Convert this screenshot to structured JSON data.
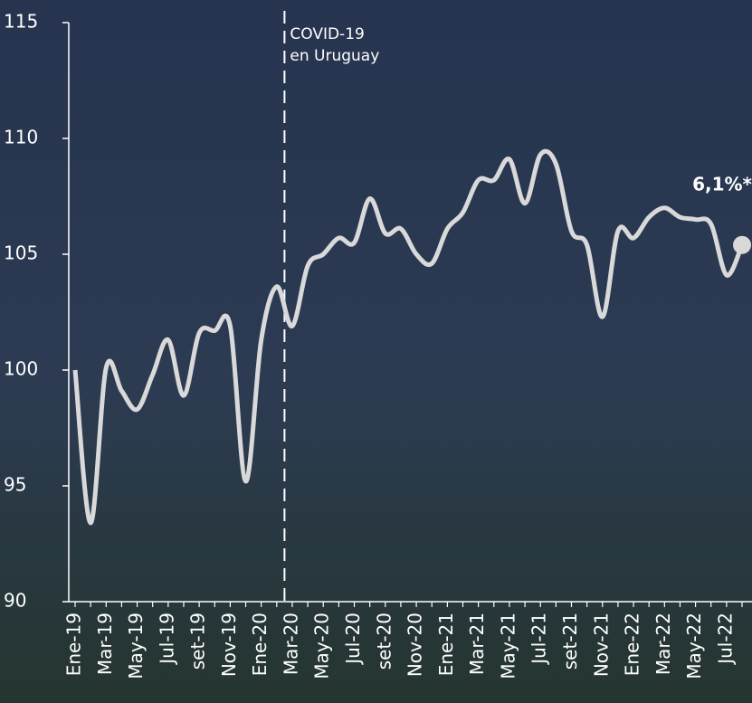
{
  "chart_data": {
    "type": "line",
    "categories": [
      "Ene-19",
      null,
      "Mar-19",
      null,
      "May-19",
      null,
      "Jul-19",
      null,
      "set-19",
      null,
      "Nov-19",
      null,
      "Ene-20",
      null,
      "Mar-20",
      null,
      "May-20",
      null,
      "Jul-20",
      null,
      "set-20",
      null,
      "Nov-20",
      null,
      "Ene-21",
      null,
      "Mar-21",
      null,
      "May-21",
      null,
      "Jul-21",
      null,
      "set-21",
      null,
      "Nov-21",
      null,
      "Ene-22",
      null,
      "Mar-22",
      null,
      "May-22",
      null,
      "Jul-22",
      null
    ],
    "values": [
      100.0,
      93.4,
      100.1,
      99.1,
      98.3,
      99.8,
      101.3,
      98.9,
      101.6,
      101.7,
      101.9,
      95.2,
      101.3,
      103.6,
      101.9,
      104.5,
      105.0,
      105.7,
      105.5,
      107.4,
      105.9,
      106.1,
      105.0,
      104.6,
      106.1,
      106.8,
      108.2,
      108.2,
      109.1,
      107.2,
      109.3,
      108.9,
      106.0,
      105.4,
      102.3,
      106.0,
      105.7,
      106.6,
      107.0,
      106.6,
      106.5,
      106.3,
      104.1,
      105.4
    ],
    "color": "#d9d9d9",
    "ylim": [
      90,
      115
    ],
    "yticks": [
      90,
      95,
      100,
      105,
      110,
      115
    ],
    "annotations": {
      "covid": [
        "COVID-19",
        "en Uruguay"
      ],
      "last": "6,1%*"
    }
  }
}
